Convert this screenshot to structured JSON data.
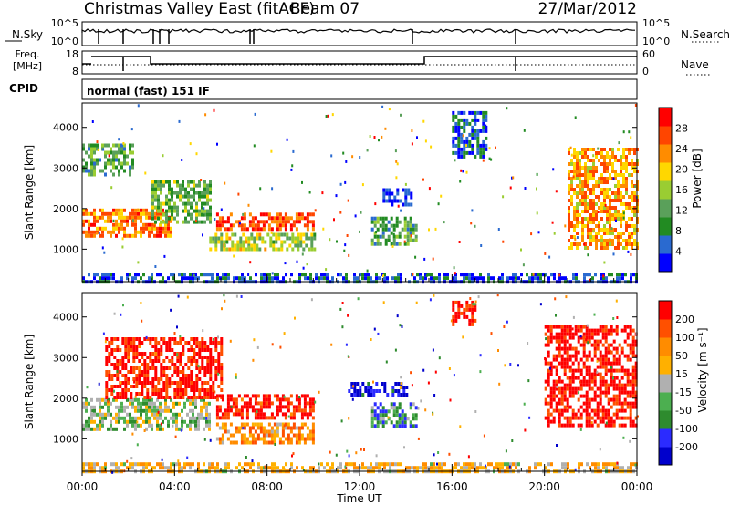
{
  "header": {
    "station": "Christmas Valley East (fitACF)",
    "beam": "Beam 07",
    "date": "27/Mar/2012"
  },
  "status_panels": {
    "nsky_label": "N.Sky",
    "nsky_ticks": [
      "10^5",
      "10^0"
    ],
    "nsearch_label": "N.Search",
    "nsearch_ticks": [
      "10^5",
      "10^0"
    ],
    "freq_label_line1": "Freq.",
    "freq_label_line2": "[MHz]",
    "freq_ticks": [
      "18",
      "8"
    ],
    "nave_label": "Nave",
    "nave_ticks": [
      "60",
      "0"
    ],
    "cpid_label": "CPID",
    "cpid_text": "normal (fast) 151 IF"
  },
  "colors": {
    "power_scale": [
      "#0000ff",
      "#2a6ad0",
      "#228b22",
      "#5aa05a",
      "#9acd32",
      "#ffd700",
      "#ff8c00",
      "#ff4500",
      "#ff0000"
    ],
    "velocity_scale": [
      "#0000cc",
      "#2b2bff",
      "#2e8b2e",
      "#4caf50",
      "#b0b0b0",
      "#ffb000",
      "#ff8c00",
      "#ff5000",
      "#ff0000"
    ]
  },
  "chart_data": [
    {
      "type": "heatmap",
      "panel": "power",
      "ylabel": "Slant Range [km]",
      "yticks": [
        1000,
        2000,
        3000,
        4000
      ],
      "ylim": [
        200,
        4600
      ],
      "xlim": [
        0,
        24
      ],
      "colorbar_label": "Power [dB]",
      "colorbar_ticks": [
        "4",
        "8",
        "12",
        "16",
        "20",
        "24",
        "28"
      ],
      "patches": [
        {
          "t0": 0.0,
          "t1": 3.8,
          "r0": 1300,
          "r1": 2000,
          "level": 0.75
        },
        {
          "t0": 0.0,
          "t1": 2.2,
          "r0": 2800,
          "r1": 3600,
          "level": 0.35
        },
        {
          "t0": 3.0,
          "t1": 5.5,
          "r0": 1700,
          "r1": 2700,
          "level": 0.4
        },
        {
          "t0": 5.8,
          "t1": 10.0,
          "r0": 1500,
          "r1": 1900,
          "level": 0.85
        },
        {
          "t0": 5.5,
          "t1": 10.0,
          "r0": 1000,
          "r1": 1400,
          "level": 0.5
        },
        {
          "t0": 12.5,
          "t1": 14.5,
          "r0": 1100,
          "r1": 1800,
          "level": 0.35
        },
        {
          "t0": 13.0,
          "t1": 14.2,
          "r0": 2100,
          "r1": 2500,
          "level": 0.1
        },
        {
          "t0": 16.0,
          "t1": 17.5,
          "r0": 3300,
          "r1": 4400,
          "level": 0.15
        },
        {
          "t0": 21.0,
          "t1": 24.0,
          "r0": 1000,
          "r1": 3500,
          "level": 0.7
        },
        {
          "t0": 0.0,
          "t1": 24.0,
          "r0": 220,
          "r1": 420,
          "level": 0.15
        }
      ]
    },
    {
      "type": "heatmap",
      "panel": "velocity",
      "ylabel": "Slant Range [km]",
      "yticks": [
        1000,
        2000,
        3000,
        4000
      ],
      "ylim": [
        200,
        4600
      ],
      "xlim": [
        0,
        24
      ],
      "colorbar_label": "Velocity [m s⁻¹]",
      "colorbar_ticks": [
        "-200",
        "-100",
        "-50",
        "-15",
        "15",
        "50",
        "100",
        "200"
      ],
      "patches": [
        {
          "t0": 0.0,
          "t1": 5.5,
          "r0": 1200,
          "r1": 2000,
          "level": 0.45
        },
        {
          "t0": 1.0,
          "t1": 6.0,
          "r0": 2000,
          "r1": 3500,
          "level": 0.95
        },
        {
          "t0": 5.8,
          "t1": 10.0,
          "r0": 1500,
          "r1": 2100,
          "level": 0.95
        },
        {
          "t0": 5.8,
          "t1": 10.0,
          "r0": 900,
          "r1": 1400,
          "level": 0.7
        },
        {
          "t0": 12.5,
          "t1": 14.5,
          "r0": 1300,
          "r1": 1900,
          "level": 0.3
        },
        {
          "t0": 11.5,
          "t1": 14.0,
          "r0": 2100,
          "r1": 2400,
          "level": 0.08
        },
        {
          "t0": 16.0,
          "t1": 17.0,
          "r0": 3800,
          "r1": 4400,
          "level": 0.95
        },
        {
          "t0": 20.0,
          "t1": 24.0,
          "r0": 1300,
          "r1": 3800,
          "level": 0.97
        },
        {
          "t0": 0.0,
          "t1": 24.0,
          "r0": 220,
          "r1": 420,
          "level": 0.6
        }
      ]
    }
  ],
  "time_axis": {
    "ticks": [
      "00:00",
      "04:00",
      "08:00",
      "12:00",
      "16:00",
      "20:00",
      "00:00"
    ],
    "label": "Time UT"
  }
}
